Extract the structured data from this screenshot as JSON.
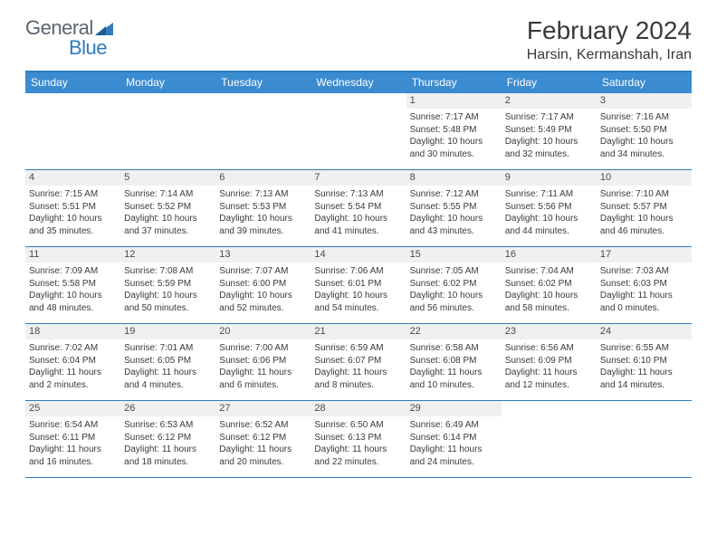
{
  "logo": {
    "word1": "General",
    "word2": "Blue"
  },
  "title": "February 2024",
  "location": "Harsin, Kermanshah, Iran",
  "colors": {
    "header_blue": "#3b8bd0",
    "rule_blue": "#2f7cc0",
    "daynum_bg": "#f0f0f0",
    "text": "#3a3a3a",
    "logo_gray": "#5a6670"
  },
  "dow": [
    "Sunday",
    "Monday",
    "Tuesday",
    "Wednesday",
    "Thursday",
    "Friday",
    "Saturday"
  ],
  "weeks": [
    [
      null,
      null,
      null,
      null,
      {
        "n": "1",
        "sr": "7:17 AM",
        "ss": "5:48 PM",
        "dl1": "10 hours",
        "dl2": "and 30 minutes."
      },
      {
        "n": "2",
        "sr": "7:17 AM",
        "ss": "5:49 PM",
        "dl1": "10 hours",
        "dl2": "and 32 minutes."
      },
      {
        "n": "3",
        "sr": "7:16 AM",
        "ss": "5:50 PM",
        "dl1": "10 hours",
        "dl2": "and 34 minutes."
      }
    ],
    [
      {
        "n": "4",
        "sr": "7:15 AM",
        "ss": "5:51 PM",
        "dl1": "10 hours",
        "dl2": "and 35 minutes."
      },
      {
        "n": "5",
        "sr": "7:14 AM",
        "ss": "5:52 PM",
        "dl1": "10 hours",
        "dl2": "and 37 minutes."
      },
      {
        "n": "6",
        "sr": "7:13 AM",
        "ss": "5:53 PM",
        "dl1": "10 hours",
        "dl2": "and 39 minutes."
      },
      {
        "n": "7",
        "sr": "7:13 AM",
        "ss": "5:54 PM",
        "dl1": "10 hours",
        "dl2": "and 41 minutes."
      },
      {
        "n": "8",
        "sr": "7:12 AM",
        "ss": "5:55 PM",
        "dl1": "10 hours",
        "dl2": "and 43 minutes."
      },
      {
        "n": "9",
        "sr": "7:11 AM",
        "ss": "5:56 PM",
        "dl1": "10 hours",
        "dl2": "and 44 minutes."
      },
      {
        "n": "10",
        "sr": "7:10 AM",
        "ss": "5:57 PM",
        "dl1": "10 hours",
        "dl2": "and 46 minutes."
      }
    ],
    [
      {
        "n": "11",
        "sr": "7:09 AM",
        "ss": "5:58 PM",
        "dl1": "10 hours",
        "dl2": "and 48 minutes."
      },
      {
        "n": "12",
        "sr": "7:08 AM",
        "ss": "5:59 PM",
        "dl1": "10 hours",
        "dl2": "and 50 minutes."
      },
      {
        "n": "13",
        "sr": "7:07 AM",
        "ss": "6:00 PM",
        "dl1": "10 hours",
        "dl2": "and 52 minutes."
      },
      {
        "n": "14",
        "sr": "7:06 AM",
        "ss": "6:01 PM",
        "dl1": "10 hours",
        "dl2": "and 54 minutes."
      },
      {
        "n": "15",
        "sr": "7:05 AM",
        "ss": "6:02 PM",
        "dl1": "10 hours",
        "dl2": "and 56 minutes."
      },
      {
        "n": "16",
        "sr": "7:04 AM",
        "ss": "6:02 PM",
        "dl1": "10 hours",
        "dl2": "and 58 minutes."
      },
      {
        "n": "17",
        "sr": "7:03 AM",
        "ss": "6:03 PM",
        "dl1": "11 hours",
        "dl2": "and 0 minutes."
      }
    ],
    [
      {
        "n": "18",
        "sr": "7:02 AM",
        "ss": "6:04 PM",
        "dl1": "11 hours",
        "dl2": "and 2 minutes."
      },
      {
        "n": "19",
        "sr": "7:01 AM",
        "ss": "6:05 PM",
        "dl1": "11 hours",
        "dl2": "and 4 minutes."
      },
      {
        "n": "20",
        "sr": "7:00 AM",
        "ss": "6:06 PM",
        "dl1": "11 hours",
        "dl2": "and 6 minutes."
      },
      {
        "n": "21",
        "sr": "6:59 AM",
        "ss": "6:07 PM",
        "dl1": "11 hours",
        "dl2": "and 8 minutes."
      },
      {
        "n": "22",
        "sr": "6:58 AM",
        "ss": "6:08 PM",
        "dl1": "11 hours",
        "dl2": "and 10 minutes."
      },
      {
        "n": "23",
        "sr": "6:56 AM",
        "ss": "6:09 PM",
        "dl1": "11 hours",
        "dl2": "and 12 minutes."
      },
      {
        "n": "24",
        "sr": "6:55 AM",
        "ss": "6:10 PM",
        "dl1": "11 hours",
        "dl2": "and 14 minutes."
      }
    ],
    [
      {
        "n": "25",
        "sr": "6:54 AM",
        "ss": "6:11 PM",
        "dl1": "11 hours",
        "dl2": "and 16 minutes."
      },
      {
        "n": "26",
        "sr": "6:53 AM",
        "ss": "6:12 PM",
        "dl1": "11 hours",
        "dl2": "and 18 minutes."
      },
      {
        "n": "27",
        "sr": "6:52 AM",
        "ss": "6:12 PM",
        "dl1": "11 hours",
        "dl2": "and 20 minutes."
      },
      {
        "n": "28",
        "sr": "6:50 AM",
        "ss": "6:13 PM",
        "dl1": "11 hours",
        "dl2": "and 22 minutes."
      },
      {
        "n": "29",
        "sr": "6:49 AM",
        "ss": "6:14 PM",
        "dl1": "11 hours",
        "dl2": "and 24 minutes."
      },
      null,
      null
    ]
  ],
  "labels": {
    "sunrise": "Sunrise:",
    "sunset": "Sunset:",
    "daylight": "Daylight:"
  }
}
